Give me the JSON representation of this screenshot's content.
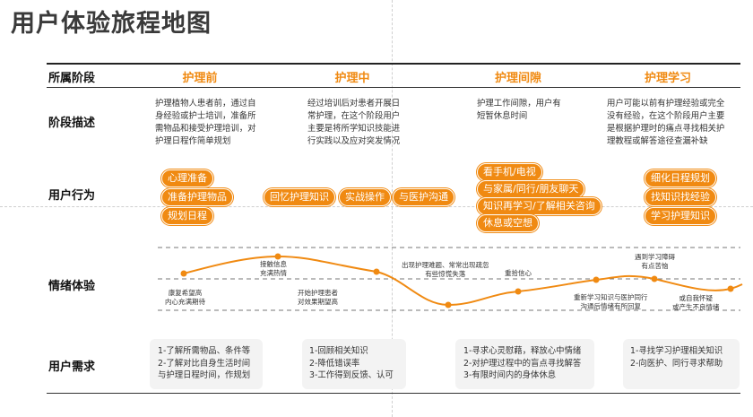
{
  "title": "用户体验旅程地图",
  "header": {
    "stage_label": "所属阶段",
    "phases": [
      "护理前",
      "护理中",
      "护理间隙",
      "护理学习"
    ]
  },
  "rows": {
    "desc_label": "阶段描述",
    "behavior_label": "用户行为",
    "emotion_label": "情绪体验",
    "needs_label": "用户需求"
  },
  "descriptions": [
    [
      "护理植物人患者前，通过自",
      "身经验或护士培训，准备所",
      "需物品和接受护理培训，对",
      "护理日程作简单规划"
    ],
    [
      "经过培训后对患者开展日",
      "常护理，在这个阶段用户",
      "主要是将所学知识技能进",
      "行实践以及应对突发情况"
    ],
    [
      "护理工作间隙，用户有",
      "短暂休息时间"
    ],
    [
      "用户可能以前有护理经验或完全",
      "没有经验，在这个阶段用户主要",
      "是根据护理时的痛点寻找相关护",
      "理教程或解答途径查漏补缺"
    ]
  ],
  "behaviors": {
    "before": [
      "心理准备",
      "准备护理物品",
      "规划日程"
    ],
    "during": [
      "回忆护理知识",
      "实战操作",
      "与医护沟通"
    ],
    "gap": [
      "看手机/电视",
      "与家属/同行/朋友聊天",
      "知识再学习/了解相关咨询",
      "休息或空想"
    ],
    "learning": [
      "细化日程规划",
      "找知识找经验",
      "学习护理知识"
    ]
  },
  "emotion_labels": [
    [
      "康复希望高",
      "内心充满期待"
    ],
    [
      "接触信息",
      "充满热情"
    ],
    [
      "开始护理患者",
      "对效果期望高"
    ],
    [
      "出现护理难题、常常出现疏忽",
      "有些惊慌失落"
    ],
    [
      "重拾信心"
    ],
    [
      "重新学习知识与医护同行",
      "沟通后情绪有所回复"
    ],
    [
      "遇到学习障碍",
      "有点苦恼"
    ],
    [
      "或自我怀疑",
      "或产生不良情绪"
    ]
  ],
  "needs": [
    [
      "1-了解所需物品、条件等",
      "2-了解对比自身生活时间",
      "与护理日程时间，作规划"
    ],
    [
      "1-回顾相关知识",
      "2-降低错误率",
      "3-工作得到反馈、认可"
    ],
    [
      "1-寻求心灵慰藉，释放心中情绪",
      "2-对护理过程中的盲点寻找解答",
      "3-有限时间内的身体休息"
    ],
    [
      "1-寻找学习护理相关知识",
      "2-向医护、同行寻求帮助"
    ]
  ],
  "colors": {
    "accent": "#f08a12",
    "text": "#222222",
    "box": "#f3f3f3"
  }
}
